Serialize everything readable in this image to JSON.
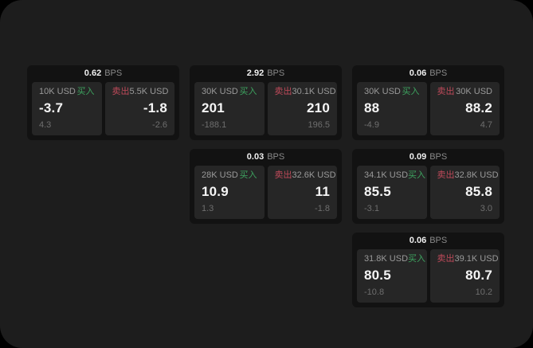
{
  "labels": {
    "buy": "买入",
    "sell": "卖出",
    "bps_unit": "BPS"
  },
  "colors": {
    "buy": "#3da35f",
    "sell": "#bf4a5a",
    "panel-bg": "#1d1d1d",
    "card-bg": "#121212",
    "tile-bg": "#262626"
  },
  "cards": [
    {
      "bps": "0.62",
      "buy": {
        "amount": "10K USD",
        "value": "-3.7",
        "change": "4.3"
      },
      "sell": {
        "amount": "5.5K USD",
        "value": "-1.8",
        "change": "-2.6"
      }
    },
    {
      "bps": "2.92",
      "buy": {
        "amount": "30K USD",
        "value": "201",
        "change": "-188.1"
      },
      "sell": {
        "amount": "30.1K USD",
        "value": "210",
        "change": "196.5"
      }
    },
    {
      "bps": "0.06",
      "buy": {
        "amount": "30K USD",
        "value": "88",
        "change": "-4.9"
      },
      "sell": {
        "amount": "30K USD",
        "value": "88.2",
        "change": "4.7"
      }
    },
    {
      "bps": "0.03",
      "buy": {
        "amount": "28K USD",
        "value": "10.9",
        "change": "1.3"
      },
      "sell": {
        "amount": "32.6K USD",
        "value": "11",
        "change": "-1.8"
      }
    },
    {
      "bps": "0.09",
      "buy": {
        "amount": "34.1K USD",
        "value": "85.5",
        "change": "-3.1"
      },
      "sell": {
        "amount": "32.8K USD",
        "value": "85.8",
        "change": "3.0"
      }
    },
    {
      "bps": "0.06",
      "buy": {
        "amount": "31.8K USD",
        "value": "80.5",
        "change": "-10.8"
      },
      "sell": {
        "amount": "39.1K USD",
        "value": "80.7",
        "change": "10.2"
      }
    }
  ]
}
